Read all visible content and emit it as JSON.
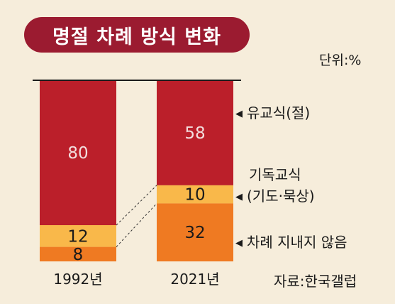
{
  "title": "명절 차례 방식 변화",
  "unit": "단위:%",
  "source": "자료:한국갤럽",
  "chart_data": {
    "type": "bar",
    "stacked": true,
    "categories": [
      "1992년",
      "2021년"
    ],
    "series": [
      {
        "name": "유교식(절)",
        "values": [
          80,
          58
        ],
        "color": "#bb1f2a",
        "label_color": "#f3dede"
      },
      {
        "name": "기독교식 (기도·묵상)",
        "values": [
          12,
          10
        ],
        "color": "#f9b84a",
        "label_color": "#1a1a1a"
      },
      {
        "name": "차례 지내지 않음",
        "values": [
          8,
          32
        ],
        "color": "#ef7a22",
        "label_color": "#1a1a1a"
      }
    ],
    "ylim": [
      0,
      100
    ],
    "legend": "right, inline with bars"
  },
  "annotations": {
    "confucian": "유교식(절)",
    "christian_line1": "기독교식",
    "christian_line2": "(기도·묵상)",
    "none": "차례 지내지 않음"
  }
}
